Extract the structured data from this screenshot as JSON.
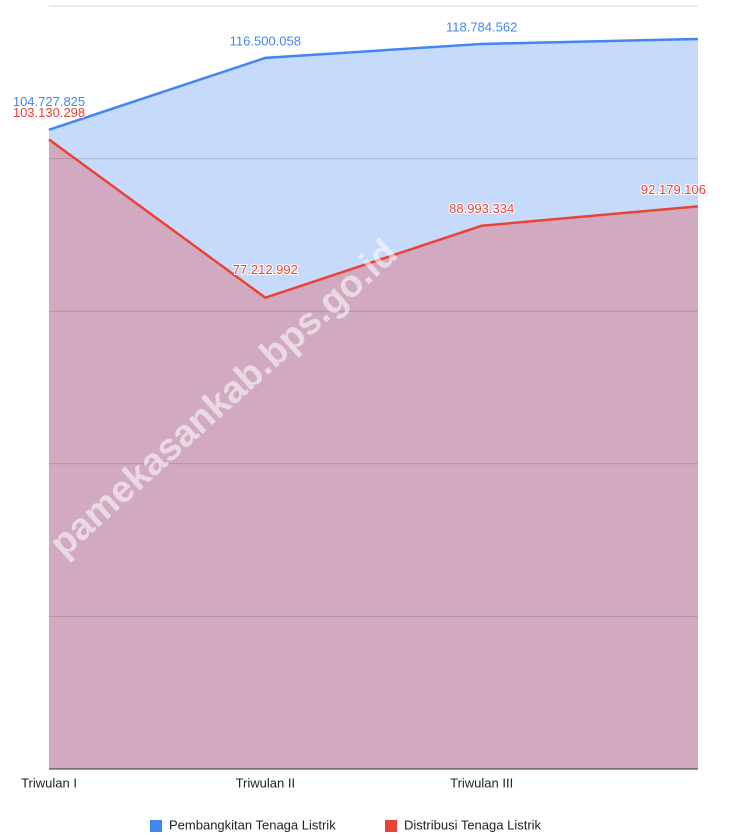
{
  "chart_data": {
    "type": "area",
    "categories": [
      "Triwulan I",
      "Triwulan II",
      "Triwulan III",
      null
    ],
    "series": [
      {
        "name": "Pembangkitan Tenaga Listrik",
        "color": "#4285f4",
        "fill": "#c6dafb",
        "values": [
          104727825,
          116500058,
          118784562,
          119600000
        ],
        "value_labels": [
          "104.727.825",
          "116.500.058",
          "118.784.562",
          null
        ]
      },
      {
        "name": "Distribusi Tenaga Listrik",
        "color": "#ea4335",
        "fill": "#d1aac2",
        "values": [
          103130298,
          77212992,
          88993334,
          92179106
        ],
        "value_labels": [
          "103.130.298",
          "77.212.992",
          "88.993.334",
          "92.179.106"
        ]
      }
    ],
    "ylim": [
      0,
      125000000
    ],
    "yticks": [
      0,
      25000000,
      50000000,
      75000000,
      100000000,
      125000000
    ],
    "grid": true,
    "legend": "bottom",
    "watermark": "pamekasankab.bps.go.id"
  }
}
